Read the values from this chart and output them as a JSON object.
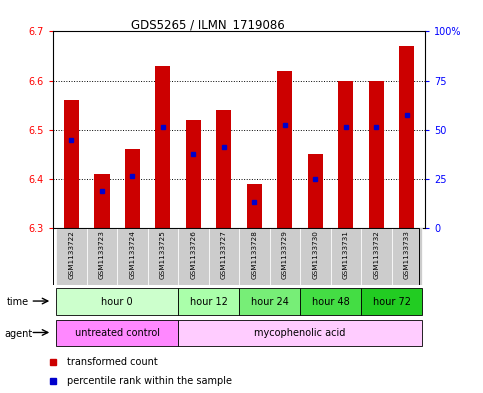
{
  "title": "GDS5265 / ILMN_1719086",
  "samples": [
    "GSM1133722",
    "GSM1133723",
    "GSM1133724",
    "GSM1133725",
    "GSM1133726",
    "GSM1133727",
    "GSM1133728",
    "GSM1133729",
    "GSM1133730",
    "GSM1133731",
    "GSM1133732",
    "GSM1133733"
  ],
  "bar_tops": [
    6.56,
    6.41,
    6.46,
    6.63,
    6.52,
    6.54,
    6.39,
    6.62,
    6.45,
    6.6,
    6.6,
    6.67
  ],
  "bar_base": 6.3,
  "blue_positions": [
    6.48,
    6.375,
    6.405,
    6.505,
    6.45,
    6.465,
    6.352,
    6.51,
    6.4,
    6.505,
    6.505,
    6.53
  ],
  "ylim_left": [
    6.3,
    6.7
  ],
  "ylim_right": [
    0,
    100
  ],
  "yticks_left": [
    6.3,
    6.4,
    6.5,
    6.6,
    6.7
  ],
  "yticks_right": [
    0,
    25,
    50,
    75,
    100
  ],
  "ytick_right_labels": [
    "0",
    "25",
    "50",
    "75",
    "100%"
  ],
  "bar_color": "#cc0000",
  "blue_color": "#0000cc",
  "bg_color": "#ffffff",
  "time_groups": [
    {
      "label": "hour 0",
      "start": 0,
      "end": 3,
      "color": "#ccffcc"
    },
    {
      "label": "hour 12",
      "start": 4,
      "end": 5,
      "color": "#aaffaa"
    },
    {
      "label": "hour 24",
      "start": 6,
      "end": 7,
      "color": "#77ee77"
    },
    {
      "label": "hour 48",
      "start": 8,
      "end": 9,
      "color": "#44dd44"
    },
    {
      "label": "hour 72",
      "start": 10,
      "end": 11,
      "color": "#22cc22"
    }
  ],
  "agent_groups": [
    {
      "label": "untreated control",
      "start": 0,
      "end": 3,
      "color": "#ff88ff"
    },
    {
      "label": "mycophenolic acid",
      "start": 4,
      "end": 11,
      "color": "#ffccff"
    }
  ],
  "sample_bg_color": "#cccccc",
  "bar_width": 0.5
}
